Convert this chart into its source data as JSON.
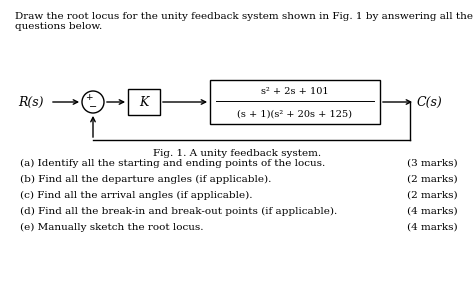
{
  "title_line1": "Draw the root locus for the unity feedback system shown in Fig. 1 by answering all the",
  "title_line2": "questions below.",
  "fig_caption": "Fig. 1. A unity feedback system.",
  "transfer_func_num": "s² + 2s + 101",
  "transfer_func_den": "(s + 1)(s² + 20s + 125)",
  "gain_label": "K",
  "input_label": "R(s)",
  "output_label": "C(s)",
  "questions": [
    {
      "label": "(a) ",
      "text": "Identify all the starting and ending points of the locus.",
      "marks": "(3 marks)"
    },
    {
      "label": "(b) ",
      "text": "Find all the departure angles (if applicable).",
      "marks": "(2 marks)"
    },
    {
      "label": "(c) ",
      "text": "Find all the arrival angles (if applicable).",
      "marks": "(2 marks)"
    },
    {
      "label": "(d) ",
      "text": "Find all the break-in and break-out points (if applicable).",
      "marks": "(4 marks)"
    },
    {
      "label": "(e) ",
      "text": "Manually sketch the root locus.",
      "marks": "(4 marks)"
    }
  ],
  "bg_color": "#ffffff",
  "text_color": "#000000"
}
